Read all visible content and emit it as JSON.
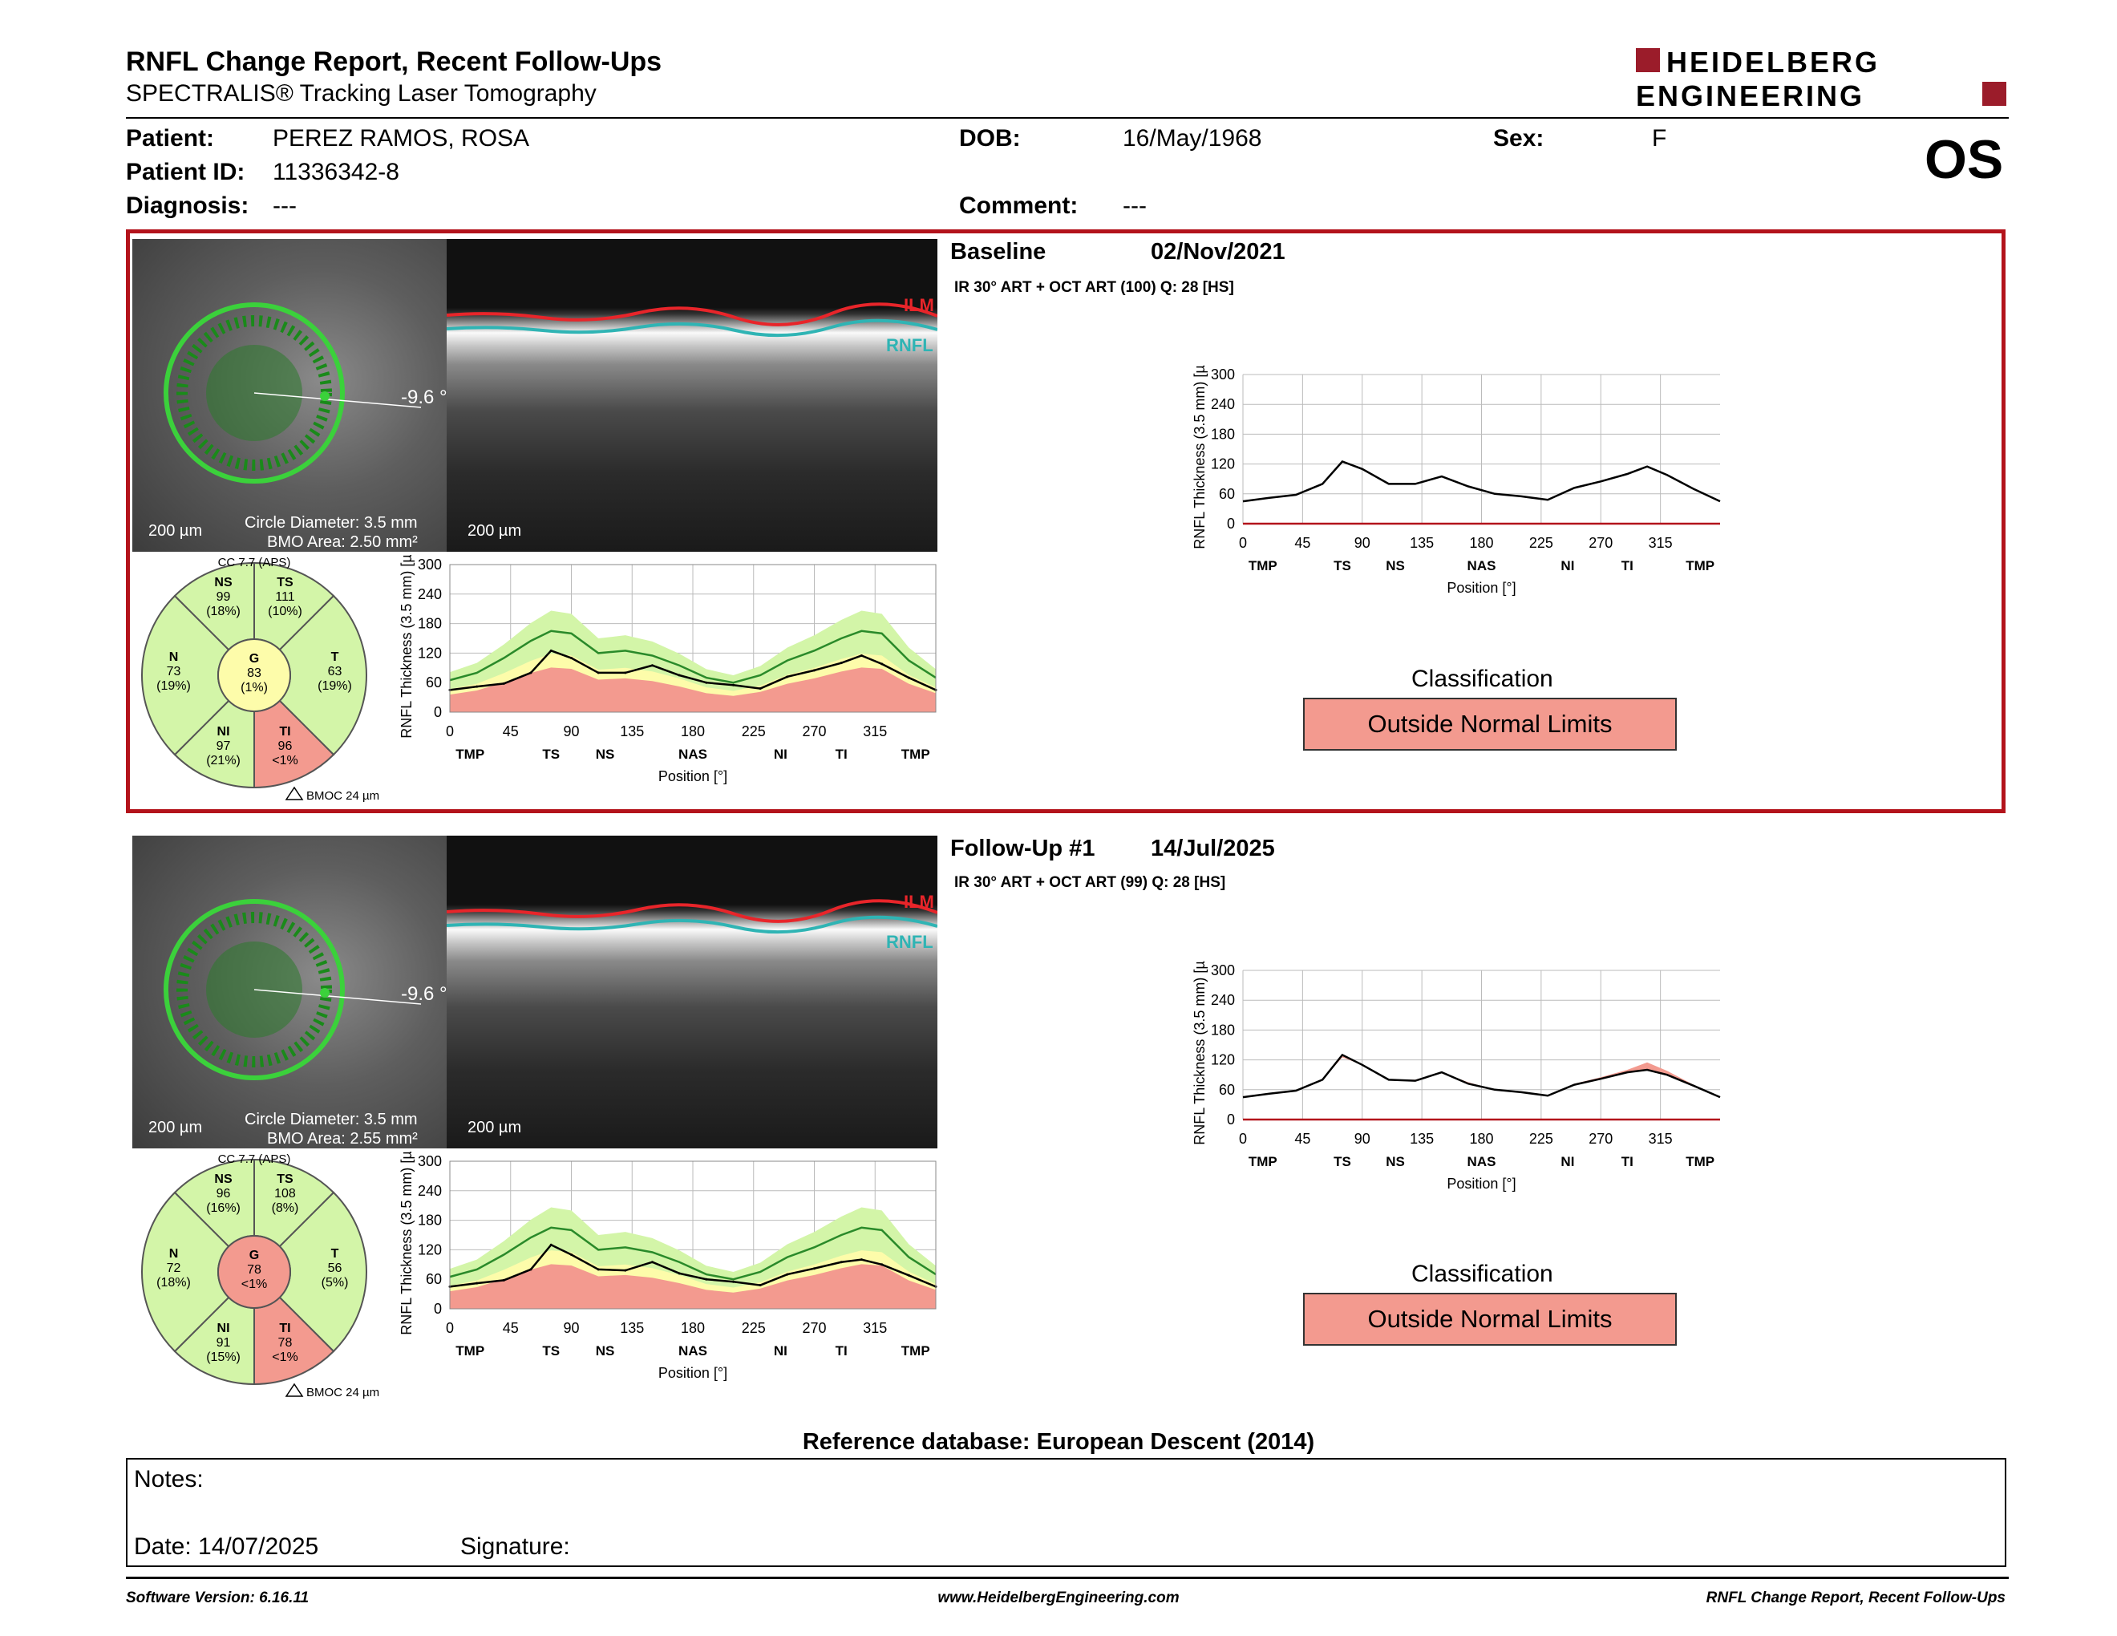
{
  "header": {
    "title": "RNFL Change Report, Recent Follow-Ups",
    "subtitle": "SPECTRALIS® Tracking Laser Tomography",
    "logo_line1": "HEIDELBERG",
    "logo_line2": "ENGINEERING",
    "eye": "OS"
  },
  "patient": {
    "patient_label": "Patient:",
    "patient_name": "PEREZ RAMOS, ROSA",
    "id_label": "Patient ID:",
    "id": "11336342-8",
    "diagnosis_label": "Diagnosis:",
    "diagnosis": "---",
    "dob_label": "DOB:",
    "dob": "16/May/1968",
    "comment_label": "Comment:",
    "comment": "---",
    "sex_label": "Sex:",
    "sex": "F"
  },
  "common": {
    "scale_200": "200 µm",
    "circle_diameter": "Circle Diameter: 3.5 mm",
    "angle": "-9.6 °",
    "ilm": "ILM",
    "rnfl": "RNFL",
    "cc": "CC 7.7 (APS)",
    "bmoc": "BMOC 24 µm",
    "classification_label": "Classification",
    "ylabel": "RNFL Thickness (3.5 mm) [µm]",
    "xlabel": "Position [°]"
  },
  "baseline": {
    "label": "Baseline",
    "date": "02/Nov/2021",
    "scan_info": "IR 30° ART + OCT ART (100) Q: 28 [HS]",
    "bmo_area": "BMO Area: 2.50 mm²",
    "classification": "Outside Normal Limits",
    "sectors": {
      "ns": {
        "name": "NS",
        "value": "99",
        "pct": "(18%)"
      },
      "ts": {
        "name": "TS",
        "value": "111",
        "pct": "(10%)"
      },
      "n": {
        "name": "N",
        "value": "73",
        "pct": "(19%)"
      },
      "g": {
        "name": "G",
        "value": "83",
        "pct": "(1%)"
      },
      "t": {
        "name": "T",
        "value": "63",
        "pct": "(19%)"
      },
      "ni": {
        "name": "NI",
        "value": "97",
        "pct": "(21%)"
      },
      "ti": {
        "name": "TI",
        "value": "96",
        "pct": "<1%"
      }
    }
  },
  "followup": {
    "label": "Follow-Up #1",
    "date": "14/Jul/2025",
    "scan_info": "IR 30° ART + OCT ART (99) Q: 28 [HS]",
    "bmo_area": "BMO Area: 2.55 mm²",
    "classification": "Outside Normal Limits",
    "sectors": {
      "ns": {
        "name": "NS",
        "value": "96",
        "pct": "(16%)"
      },
      "ts": {
        "name": "TS",
        "value": "108",
        "pct": "(8%)"
      },
      "n": {
        "name": "N",
        "value": "72",
        "pct": "(18%)"
      },
      "g": {
        "name": "G",
        "value": "78",
        "pct": "<1%"
      },
      "t": {
        "name": "T",
        "value": "56",
        "pct": "(5%)"
      },
      "ni": {
        "name": "NI",
        "value": "91",
        "pct": "(15%)"
      },
      "ti": {
        "name": "TI",
        "value": "78",
        "pct": "<1%"
      }
    }
  },
  "colors": {
    "green": "#d3f5a8",
    "yellow": "#fdfcaa",
    "red": "#f39a8f",
    "frame_red": "#b3131b"
  },
  "chart_data": [
    {
      "type": "line",
      "id": "baseline-normative",
      "xlabel": "Position [°]",
      "ylabel": "RNFL Thickness (3.5 mm) [µm]",
      "ylim": [
        0,
        300
      ],
      "xlim": [
        0,
        360
      ],
      "x_ticks": [
        "0",
        "45",
        "90",
        "135",
        "180",
        "225",
        "270",
        "315"
      ],
      "y_ticks": [
        "0",
        "60",
        "120",
        "180",
        "240",
        "300"
      ],
      "region_labels": [
        "TMP",
        "TS",
        "NS",
        "NAS",
        "NI",
        "TI",
        "TMP"
      ],
      "x": [
        0,
        20,
        40,
        60,
        75,
        90,
        110,
        130,
        150,
        170,
        190,
        210,
        230,
        250,
        270,
        290,
        305,
        320,
        340,
        360
      ],
      "series": [
        {
          "values": [
            45,
            52,
            58,
            80,
            125,
            110,
            80,
            80,
            95,
            75,
            60,
            55,
            48,
            72,
            85,
            100,
            115,
            98,
            70,
            45
          ]
        },
        {
          "values": [
            65,
            80,
            110,
            145,
            165,
            160,
            120,
            125,
            115,
            95,
            70,
            60,
            75,
            105,
            125,
            150,
            165,
            160,
            105,
            70
          ]
        }
      ]
    },
    {
      "type": "line",
      "id": "baseline-single",
      "ylabel": "RNFL Thickness (3.5 mm) [µm]",
      "xlabel": "Position [°]",
      "ylim": [
        0,
        300
      ],
      "xlim": [
        0,
        360
      ],
      "x_ticks": [
        "0",
        "45",
        "90",
        "135",
        "180",
        "225",
        "270",
        "315"
      ],
      "y_ticks": [
        "0",
        "60",
        "120",
        "180",
        "240",
        "300"
      ],
      "region_labels": [
        "TMP",
        "TS",
        "NS",
        "NAS",
        "NI",
        "TI",
        "TMP"
      ],
      "x": [
        0,
        20,
        40,
        60,
        75,
        90,
        110,
        130,
        150,
        170,
        190,
        210,
        230,
        250,
        270,
        290,
        305,
        320,
        340,
        360
      ],
      "series": [
        {
          "values": [
            45,
            52,
            58,
            80,
            125,
            110,
            80,
            80,
            95,
            75,
            60,
            55,
            48,
            72,
            85,
            100,
            115,
            98,
            70,
            45
          ]
        }
      ]
    },
    {
      "type": "line",
      "id": "followup-normative",
      "xlabel": "Position [°]",
      "ylabel": "RNFL Thickness (3.5 mm) [µm]",
      "ylim": [
        0,
        300
      ],
      "xlim": [
        0,
        360
      ],
      "x_ticks": [
        "0",
        "45",
        "90",
        "135",
        "180",
        "225",
        "270",
        "315"
      ],
      "y_ticks": [
        "0",
        "60",
        "120",
        "180",
        "240",
        "300"
      ],
      "region_labels": [
        "TMP",
        "TS",
        "NS",
        "NAS",
        "NI",
        "TI",
        "TMP"
      ],
      "x": [
        0,
        20,
        40,
        60,
        75,
        90,
        110,
        130,
        150,
        170,
        190,
        210,
        230,
        250,
        270,
        290,
        305,
        320,
        340,
        360
      ],
      "series": [
        {
          "values": [
            45,
            52,
            58,
            80,
            130,
            110,
            80,
            78,
            95,
            72,
            60,
            55,
            48,
            70,
            82,
            95,
            100,
            90,
            68,
            45
          ]
        },
        {
          "values": [
            65,
            80,
            110,
            145,
            165,
            160,
            120,
            125,
            115,
            95,
            70,
            60,
            75,
            105,
            125,
            150,
            165,
            160,
            105,
            70
          ]
        }
      ]
    },
    {
      "type": "line",
      "id": "followup-change",
      "ylabel": "RNFL Thickness (3.5 mm) [µm]",
      "xlabel": "Position [°]",
      "ylim": [
        0,
        300
      ],
      "xlim": [
        0,
        360
      ],
      "x_ticks": [
        "0",
        "45",
        "90",
        "135",
        "180",
        "225",
        "270",
        "315"
      ],
      "y_ticks": [
        "0",
        "60",
        "120",
        "180",
        "240",
        "300"
      ],
      "region_labels": [
        "TMP",
        "TS",
        "NS",
        "NAS",
        "NI",
        "TI",
        "TMP"
      ],
      "x": [
        0,
        20,
        40,
        60,
        75,
        90,
        110,
        130,
        150,
        170,
        190,
        210,
        230,
        250,
        270,
        290,
        305,
        320,
        340,
        360
      ],
      "series": [
        {
          "values": [
            45,
            52,
            58,
            80,
            125,
            110,
            80,
            80,
            95,
            75,
            60,
            55,
            48,
            72,
            85,
            100,
            115,
            98,
            70,
            45
          ]
        },
        {
          "values": [
            45,
            52,
            58,
            80,
            130,
            110,
            80,
            78,
            95,
            72,
            60,
            55,
            48,
            70,
            82,
            95,
            100,
            90,
            68,
            45
          ]
        }
      ]
    }
  ],
  "reference": "Reference database: European Descent (2014)",
  "notes": {
    "notes_label": "Notes:",
    "date_label": "Date: 14/07/2025",
    "signature_label": "Signature:"
  },
  "footer": {
    "software": "Software Version: 6.16.11",
    "url": "www.HeidelbergEngineering.com",
    "report": "RNFL Change Report, Recent Follow-Ups"
  }
}
